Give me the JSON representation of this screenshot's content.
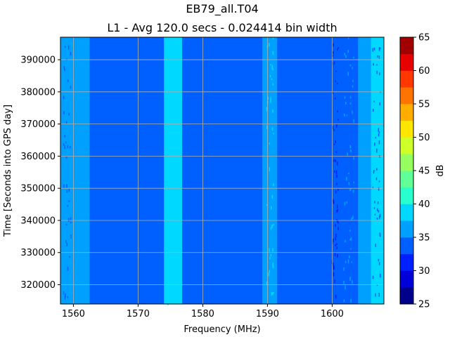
{
  "chart_data": {
    "type": "heatmap",
    "title": "EB79_all.T04",
    "subtitle": "L1 - Avg 120.0 secs - 0.024414 bin width",
    "xlabel": "Frequency (MHz)",
    "ylabel": "Time [Seconds into GPS day]",
    "xlim": [
      1558,
      1608
    ],
    "ylim": [
      314000,
      397000
    ],
    "xticks": [
      1560,
      1570,
      1580,
      1590,
      1600
    ],
    "xtick_labels": [
      "1560",
      "1570",
      "1580",
      "1590",
      "1600"
    ],
    "yticks": [
      320000,
      330000,
      340000,
      350000,
      360000,
      370000,
      380000,
      390000
    ],
    "ytick_labels": [
      "320000",
      "330000",
      "340000",
      "350000",
      "360000",
      "370000",
      "380000",
      "390000"
    ],
    "grid": true,
    "background_db": 33.5,
    "bands": [
      {
        "x0": 1558.0,
        "x1": 1562.5,
        "db": 36.5
      },
      {
        "x0": 1574.0,
        "x1": 1576.8,
        "db": 37.5
      },
      {
        "x0": 1589.2,
        "x1": 1591.5,
        "db": 37.0
      },
      {
        "x0": 1604.0,
        "x1": 1606.0,
        "db": 35.5
      },
      {
        "x0": 1606.0,
        "x1": 1608.0,
        "db": 38.5
      }
    ],
    "colorbar": {
      "label": "dB",
      "min": 25,
      "max": 65,
      "ticks": [
        25,
        30,
        35,
        40,
        45,
        50,
        55,
        60,
        65
      ],
      "tick_labels": [
        "25",
        "30",
        "35",
        "40",
        "45",
        "50",
        "55",
        "60",
        "65"
      ],
      "levels": [
        25,
        27.5,
        30,
        32.5,
        35,
        37.5,
        40,
        42.5,
        45,
        47.5,
        50,
        52.5,
        55,
        57.5,
        60,
        62.5,
        65
      ],
      "colors": [
        "#00008b",
        "#0000d9",
        "#0020ff",
        "#0060ff",
        "#00a0ff",
        "#00d8ff",
        "#29ffce",
        "#60ff97",
        "#97ff60",
        "#ceff29",
        "#ffe600",
        "#ffae00",
        "#ff7300",
        "#ff3800",
        "#e60000",
        "#a20000"
      ]
    }
  }
}
